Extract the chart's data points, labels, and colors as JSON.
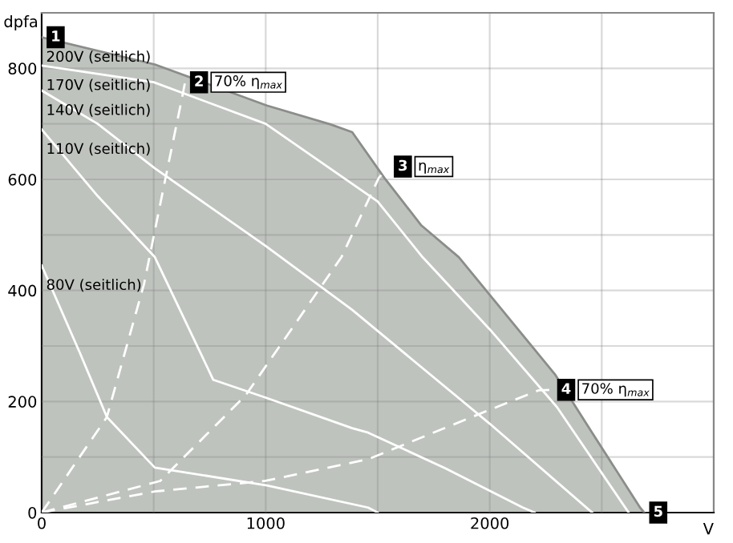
{
  "chart_data": {
    "type": "line",
    "xlabel": "V",
    "ylabel": "dpfa",
    "xlim": [
      0,
      3000
    ],
    "ylim": [
      0,
      900
    ],
    "xticks": [
      0,
      {
        "value": 500,
        "label": null
      },
      1000,
      {
        "value": 1500,
        "label": null
      },
      2000,
      {
        "value": 2500,
        "label": null
      },
      {
        "value": 3000,
        "label": null
      }
    ],
    "yticks": [
      0,
      {
        "value": 100,
        "label": null
      },
      200,
      {
        "value": 300,
        "label": null
      },
      400,
      {
        "value": 500,
        "label": null
      },
      600,
      {
        "value": 700,
        "label": null
      },
      800,
      {
        "value": 900,
        "label": null
      }
    ],
    "grid": true,
    "legend": false,
    "series": [
      {
        "name": "200V (seitlich)",
        "type": "area",
        "color": "#bfc3be",
        "x": [
          0,
          505,
          1005,
          1290,
          1386,
          1529,
          1695,
          1862,
          2291,
          2457,
          2671,
          2690
        ],
        "values": [
          856,
          807,
          733,
          699,
          685,
          603,
          517,
          460,
          249,
          144,
          9,
          0
        ]
      },
      {
        "name": "170V (seitlich)",
        "color": "#ffffff",
        "x": [
          0,
          500,
          1000,
          1500,
          1700,
          2000,
          2300,
          2620
        ],
        "values": [
          805,
          775,
          700,
          560,
          460,
          330,
          190,
          0
        ]
      },
      {
        "name": "140V (seitlich)",
        "color": "#ffffff",
        "x": [
          0,
          250,
          505,
          1000,
          1386,
          2000,
          2457
        ],
        "values": [
          760,
          700,
          620,
          480,
          365,
          160,
          0
        ]
      },
      {
        "name": "110V (seitlich)",
        "color": "#ffffff",
        "x": [
          0,
          250,
          505,
          766,
          1000,
          1386,
          1457,
          1800,
          2148,
          2200
        ],
        "values": [
          690,
          570,
          460,
          239,
          207,
          152,
          144,
          80,
          9,
          0
        ]
      },
      {
        "name": "80V (seitlich)",
        "color": "#ffffff",
        "x": [
          0,
          171,
          291,
          505,
          1005,
          1457,
          1500
        ],
        "values": [
          445,
          287,
          172,
          81,
          49,
          9,
          0
        ]
      },
      {
        "color": "#ffffff",
        "line_style": "dashed",
        "x": [
          0,
          291,
          457,
          553,
          624,
          640
        ],
        "values": [
          0,
          172,
          412,
          603,
          742,
          775
        ]
      },
      {
        "color": "#ffffff",
        "line_style": "dashed",
        "x": [
          0,
          529,
          910,
          1338,
          1505,
          1550
        ],
        "values": [
          0,
          57,
          211,
          460,
          603,
          623
        ]
      },
      {
        "color": "#ffffff",
        "line_style": "dashed",
        "x": [
          0,
          505,
          998,
          1457,
          1981,
          2217,
          2279
        ],
        "values": [
          0,
          38,
          57,
          96,
          182,
          220,
          221
        ]
      }
    ],
    "annotations": [
      {
        "text": "1",
        "x": 0,
        "y": 856
      },
      {
        "text": "2 70% η$_{max}$",
        "x": 640,
        "y": 775
      },
      {
        "text": "3 η$_{max}$",
        "x": 1550,
        "y": 623
      },
      {
        "text": "4 70% η$_{max}$",
        "x": 2279,
        "y": 221
      },
      {
        "text": "5",
        "x": 2690,
        "y": 0
      }
    ]
  }
}
